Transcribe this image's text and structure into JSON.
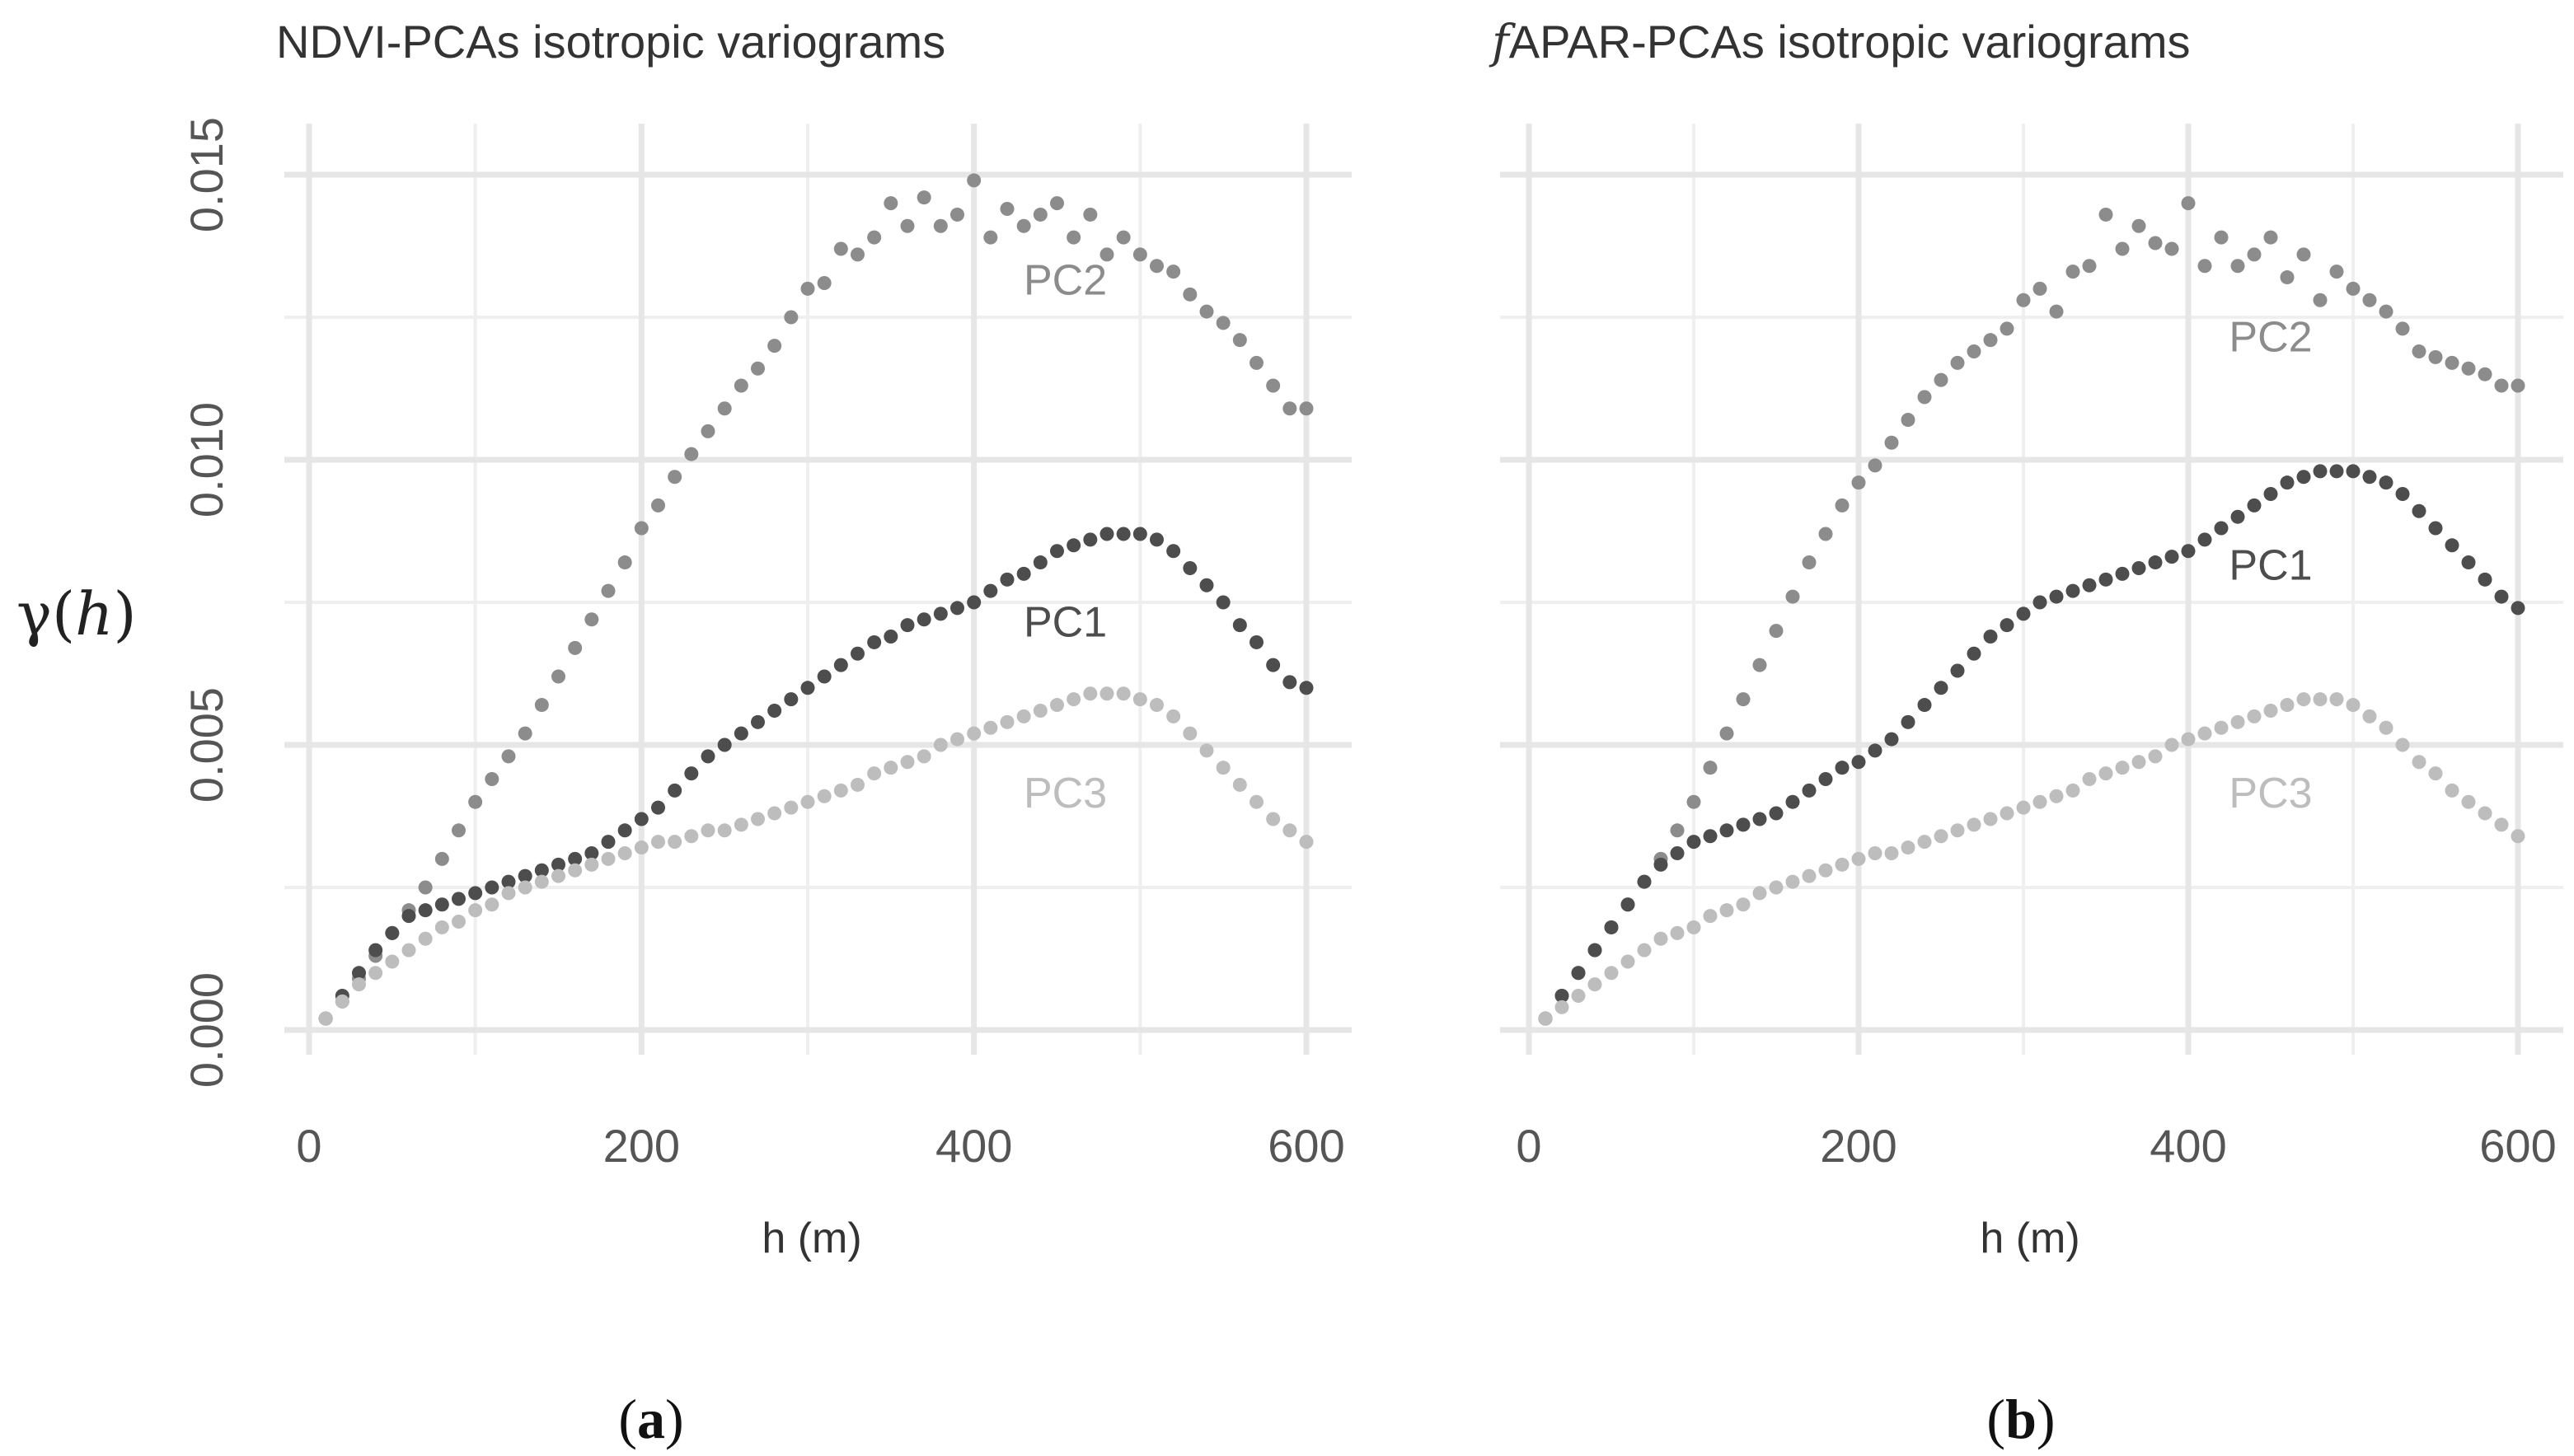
{
  "figure": {
    "y_axis_label_symbol": "γ",
    "y_axis_label_paren_open": "(",
    "y_axis_label_var": "h",
    "y_axis_label_paren_close": ")"
  },
  "chart_data": [
    {
      "type": "scatter",
      "title": "NDVI-PCAs isotropic variograms",
      "xlabel": "h (m)",
      "ylabel": "γ(h)",
      "panel_label": {
        "open": "(",
        "letter": "a",
        "close": ")"
      },
      "xlim": [
        0,
        600
      ],
      "ylim": [
        0,
        0.015
      ],
      "x_ticks": [
        0,
        200,
        400,
        600
      ],
      "x_tick_labels": [
        "0",
        "200",
        "400",
        "600"
      ],
      "y_ticks": [
        0,
        0.005,
        0.01,
        0.015
      ],
      "y_tick_labels": [
        "0.000",
        "0.005",
        "0.010",
        "0.015"
      ],
      "grid": true,
      "series": [
        {
          "name": "PC2",
          "color": "#8c8c8c",
          "label_at": [
            455,
            0.0129
          ],
          "x": [
            10,
            20,
            30,
            40,
            50,
            60,
            70,
            80,
            90,
            100,
            110,
            120,
            130,
            140,
            150,
            160,
            170,
            180,
            190,
            200,
            210,
            220,
            230,
            240,
            250,
            260,
            270,
            280,
            290,
            300,
            310,
            320,
            330,
            340,
            350,
            360,
            370,
            380,
            390,
            400,
            410,
            420,
            430,
            440,
            450,
            460,
            470,
            480,
            490,
            500,
            510,
            520,
            530,
            540,
            550,
            560,
            570,
            580,
            590,
            600
          ],
          "y": [
            0.0002,
            0.0005,
            0.0009,
            0.0013,
            0.0017,
            0.0021,
            0.0025,
            0.003,
            0.0035,
            0.004,
            0.0044,
            0.0048,
            0.0052,
            0.0057,
            0.0062,
            0.0067,
            0.0072,
            0.0077,
            0.0082,
            0.0088,
            0.0092,
            0.0097,
            0.0101,
            0.0105,
            0.0109,
            0.0113,
            0.0116,
            0.012,
            0.0125,
            0.013,
            0.0131,
            0.0137,
            0.0136,
            0.0139,
            0.0145,
            0.0141,
            0.0146,
            0.0141,
            0.0143,
            0.0149,
            0.0139,
            0.0144,
            0.0141,
            0.0143,
            0.0145,
            0.0139,
            0.0143,
            0.0136,
            0.0139,
            0.0136,
            0.0134,
            0.0133,
            0.0129,
            0.0126,
            0.0124,
            0.0121,
            0.0117,
            0.0113,
            0.0109,
            0.0109
          ]
        },
        {
          "name": "PC1",
          "color": "#4d4d4d",
          "label_at": [
            455,
            0.0069
          ],
          "x": [
            10,
            20,
            30,
            40,
            50,
            60,
            70,
            80,
            90,
            100,
            110,
            120,
            130,
            140,
            150,
            160,
            170,
            180,
            190,
            200,
            210,
            220,
            230,
            240,
            250,
            260,
            270,
            280,
            290,
            300,
            310,
            320,
            330,
            340,
            350,
            360,
            370,
            380,
            390,
            400,
            410,
            420,
            430,
            440,
            450,
            460,
            470,
            480,
            490,
            500,
            510,
            520,
            530,
            540,
            550,
            560,
            570,
            580,
            590,
            600
          ],
          "y": [
            0.0002,
            0.0006,
            0.001,
            0.0014,
            0.0017,
            0.002,
            0.0021,
            0.0022,
            0.0023,
            0.0024,
            0.0025,
            0.0026,
            0.0027,
            0.0028,
            0.0029,
            0.003,
            0.0031,
            0.0033,
            0.0035,
            0.0037,
            0.0039,
            0.0042,
            0.0045,
            0.0048,
            0.005,
            0.0052,
            0.0054,
            0.0056,
            0.0058,
            0.006,
            0.0062,
            0.0064,
            0.0066,
            0.0068,
            0.0069,
            0.0071,
            0.0072,
            0.0073,
            0.0074,
            0.0075,
            0.0077,
            0.0079,
            0.008,
            0.0082,
            0.0084,
            0.0085,
            0.0086,
            0.0087,
            0.0087,
            0.0087,
            0.0086,
            0.0084,
            0.0081,
            0.0078,
            0.0075,
            0.0071,
            0.0068,
            0.0064,
            0.0061,
            0.006
          ]
        },
        {
          "name": "PC3",
          "color": "#bdbdbd",
          "label_at": [
            455,
            0.0039
          ],
          "x": [
            10,
            20,
            30,
            40,
            50,
            60,
            70,
            80,
            90,
            100,
            110,
            120,
            130,
            140,
            150,
            160,
            170,
            180,
            190,
            200,
            210,
            220,
            230,
            240,
            250,
            260,
            270,
            280,
            290,
            300,
            310,
            320,
            330,
            340,
            350,
            360,
            370,
            380,
            390,
            400,
            410,
            420,
            430,
            440,
            450,
            460,
            470,
            480,
            490,
            500,
            510,
            520,
            530,
            540,
            550,
            560,
            570,
            580,
            590,
            600
          ],
          "y": [
            0.0002,
            0.0005,
            0.0008,
            0.001,
            0.0012,
            0.0014,
            0.0016,
            0.0018,
            0.0019,
            0.0021,
            0.0022,
            0.0024,
            0.0025,
            0.0026,
            0.0027,
            0.0028,
            0.0029,
            0.003,
            0.0031,
            0.0032,
            0.0033,
            0.0033,
            0.0034,
            0.0035,
            0.0035,
            0.0036,
            0.0037,
            0.0038,
            0.0039,
            0.004,
            0.0041,
            0.0042,
            0.0043,
            0.0045,
            0.0046,
            0.0047,
            0.0048,
            0.005,
            0.0051,
            0.0052,
            0.0053,
            0.0054,
            0.0055,
            0.0056,
            0.0057,
            0.0058,
            0.0059,
            0.0059,
            0.0059,
            0.0058,
            0.0057,
            0.0055,
            0.0052,
            0.0049,
            0.0046,
            0.0043,
            0.004,
            0.0037,
            0.0035,
            0.0033
          ]
        }
      ]
    },
    {
      "type": "scatter",
      "title": "APAR-PCAs isotropic variograms",
      "title_prefix": "f",
      "xlabel": "h (m)",
      "ylabel": "γ(h)",
      "panel_label": {
        "open": "(",
        "letter": "b",
        "close": ")"
      },
      "xlim": [
        0,
        600
      ],
      "ylim": [
        0,
        0.015
      ],
      "x_ticks": [
        0,
        200,
        400,
        600
      ],
      "x_tick_labels": [
        "0",
        "200",
        "400",
        "600"
      ],
      "y_ticks": [
        0,
        0.005,
        0.01,
        0.015
      ],
      "y_tick_labels": [],
      "grid": true,
      "series": [
        {
          "name": "PC2",
          "color": "#8c8c8c",
          "label_at": [
            450,
            0.0119
          ],
          "x": [
            10,
            20,
            30,
            40,
            50,
            60,
            70,
            80,
            90,
            100,
            110,
            120,
            130,
            140,
            150,
            160,
            170,
            180,
            190,
            200,
            210,
            220,
            230,
            240,
            250,
            260,
            270,
            280,
            290,
            300,
            310,
            320,
            330,
            340,
            350,
            360,
            370,
            380,
            390,
            400,
            410,
            420,
            430,
            440,
            450,
            460,
            470,
            480,
            490,
            500,
            510,
            520,
            530,
            540,
            550,
            560,
            570,
            580,
            590,
            600
          ],
          "y": [
            0.0002,
            0.0006,
            0.001,
            0.0014,
            0.0018,
            0.0022,
            0.0026,
            0.003,
            0.0035,
            0.004,
            0.0046,
            0.0052,
            0.0058,
            0.0064,
            0.007,
            0.0076,
            0.0082,
            0.0087,
            0.0092,
            0.0096,
            0.0099,
            0.0103,
            0.0107,
            0.0111,
            0.0114,
            0.0117,
            0.0119,
            0.0121,
            0.0123,
            0.0128,
            0.013,
            0.0126,
            0.0133,
            0.0134,
            0.0143,
            0.0137,
            0.0141,
            0.0138,
            0.0137,
            0.0145,
            0.0134,
            0.0139,
            0.0134,
            0.0136,
            0.0139,
            0.0132,
            0.0136,
            0.0128,
            0.0133,
            0.013,
            0.0128,
            0.0126,
            0.0123,
            0.0119,
            0.0118,
            0.0117,
            0.0116,
            0.0115,
            0.0113,
            0.0113
          ]
        },
        {
          "name": "PC1",
          "color": "#4d4d4d",
          "label_at": [
            450,
            0.0079
          ],
          "x": [
            10,
            20,
            30,
            40,
            50,
            60,
            70,
            80,
            90,
            100,
            110,
            120,
            130,
            140,
            150,
            160,
            170,
            180,
            190,
            200,
            210,
            220,
            230,
            240,
            250,
            260,
            270,
            280,
            290,
            300,
            310,
            320,
            330,
            340,
            350,
            360,
            370,
            380,
            390,
            400,
            410,
            420,
            430,
            440,
            450,
            460,
            470,
            480,
            490,
            500,
            510,
            520,
            530,
            540,
            550,
            560,
            570,
            580,
            590,
            600
          ],
          "y": [
            0.0002,
            0.0006,
            0.001,
            0.0014,
            0.0018,
            0.0022,
            0.0026,
            0.0029,
            0.0031,
            0.0033,
            0.0034,
            0.0035,
            0.0036,
            0.0037,
            0.0038,
            0.004,
            0.0042,
            0.0044,
            0.0046,
            0.0047,
            0.0049,
            0.0051,
            0.0054,
            0.0057,
            0.006,
            0.0063,
            0.0066,
            0.0069,
            0.0071,
            0.0073,
            0.0075,
            0.0076,
            0.0077,
            0.0078,
            0.0079,
            0.008,
            0.0081,
            0.0082,
            0.0083,
            0.0084,
            0.0086,
            0.0088,
            0.009,
            0.0092,
            0.0094,
            0.0096,
            0.0097,
            0.0098,
            0.0098,
            0.0098,
            0.0097,
            0.0096,
            0.0094,
            0.0091,
            0.0088,
            0.0085,
            0.0082,
            0.0079,
            0.0076,
            0.0074
          ]
        },
        {
          "name": "PC3",
          "color": "#bdbdbd",
          "label_at": [
            450,
            0.0039
          ],
          "x": [
            10,
            20,
            30,
            40,
            50,
            60,
            70,
            80,
            90,
            100,
            110,
            120,
            130,
            140,
            150,
            160,
            170,
            180,
            190,
            200,
            210,
            220,
            230,
            240,
            250,
            260,
            270,
            280,
            290,
            300,
            310,
            320,
            330,
            340,
            350,
            360,
            370,
            380,
            390,
            400,
            410,
            420,
            430,
            440,
            450,
            460,
            470,
            480,
            490,
            500,
            510,
            520,
            530,
            540,
            550,
            560,
            570,
            580,
            590,
            600
          ],
          "y": [
            0.0002,
            0.0004,
            0.0006,
            0.0008,
            0.001,
            0.0012,
            0.0014,
            0.0016,
            0.0017,
            0.0018,
            0.002,
            0.0021,
            0.0022,
            0.0024,
            0.0025,
            0.0026,
            0.0027,
            0.0028,
            0.0029,
            0.003,
            0.0031,
            0.0031,
            0.0032,
            0.0033,
            0.0034,
            0.0035,
            0.0036,
            0.0037,
            0.0038,
            0.0039,
            0.004,
            0.0041,
            0.0042,
            0.0044,
            0.0045,
            0.0046,
            0.0047,
            0.0048,
            0.005,
            0.0051,
            0.0052,
            0.0053,
            0.0054,
            0.0055,
            0.0056,
            0.0057,
            0.0058,
            0.0058,
            0.0058,
            0.0057,
            0.0055,
            0.0053,
            0.005,
            0.0047,
            0.0045,
            0.0042,
            0.004,
            0.0038,
            0.0036,
            0.0034
          ]
        }
      ]
    }
  ]
}
